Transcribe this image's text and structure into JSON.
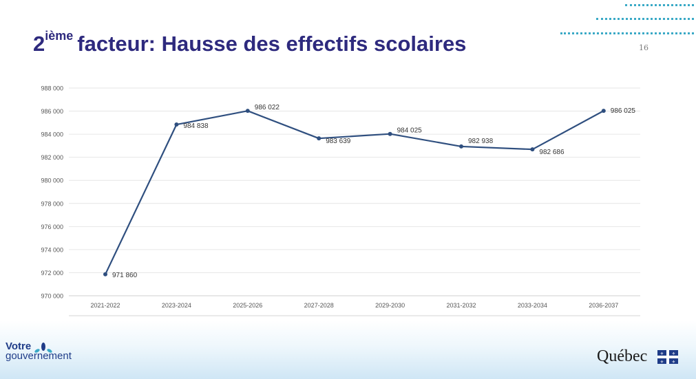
{
  "slide": {
    "title_number": "2",
    "title_superscript": "ième",
    "title_text": "facteur: Hausse des effectifs scolaires",
    "page_number": "16"
  },
  "footer": {
    "left_logo_line1": "Votre",
    "left_logo_line2": "gouvernement",
    "right_logo": "Québec",
    "right_logo_icon": "fleur-de-lis-flag-icon",
    "left_logo_icon": "leaf-icon"
  },
  "colors": {
    "title": "#2e2a7e",
    "line": "#2f4f7f",
    "accent_dots": "#3aa9c6"
  },
  "chart_data": {
    "type": "line",
    "title": "",
    "xlabel": "",
    "ylabel": "",
    "categories": [
      "2021-2022",
      "2023-2024",
      "2025-2026",
      "2027-2028",
      "2029-2030",
      "2031-2032",
      "2033-2034",
      "2036-2037"
    ],
    "x_positions": [
      0,
      1,
      2,
      3,
      4,
      5,
      6,
      7
    ],
    "series": [
      {
        "values": [
          971860,
          984838,
          986022,
          983639,
          984025,
          982938,
          982686,
          986025
        ],
        "labels": [
          "971 860",
          "984 838",
          "986 022",
          "983 639",
          "984 025",
          "982 938",
          "982 686",
          "986 025"
        ]
      }
    ],
    "ylim": [
      970000,
      988000
    ],
    "y_ticks": [
      970000,
      972000,
      974000,
      976000,
      978000,
      980000,
      982000,
      984000,
      986000,
      988000
    ],
    "y_tick_labels": [
      "970 000",
      "972 000",
      "974 000",
      "976 000",
      "978 000",
      "980 000",
      "982 000",
      "984 000",
      "986 000",
      "988 000"
    ],
    "grid": true,
    "legend": "none"
  }
}
